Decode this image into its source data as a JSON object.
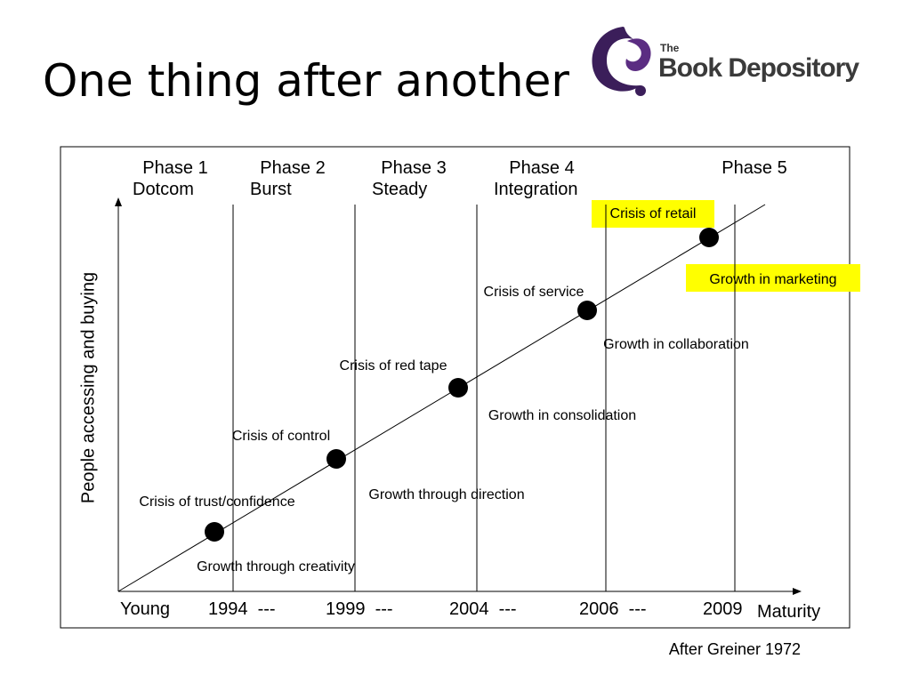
{
  "title": "One thing after another",
  "logo": {
    "small": "The",
    "name": "Book Depository"
  },
  "phases": [
    {
      "name": "Phase 1",
      "label": "Dotcom"
    },
    {
      "name": "Phase 2",
      "label": "Burst"
    },
    {
      "name": "Phase 3",
      "label": "Steady"
    },
    {
      "name": "Phase 4",
      "label": "Integration"
    },
    {
      "name": "Phase 5"
    }
  ],
  "crises": [
    "Crisis of trust/confidence",
    "Crisis of control",
    "Crisis of red tape",
    "Crisis of service",
    "Crisis of retail"
  ],
  "growths": [
    "Growth through creativity",
    "Growth through direction",
    "Growth in consolidation",
    "Growth in collaboration",
    "Growth in marketing"
  ],
  "x_labels": [
    "Young",
    "1994  ---",
    "1999  ---",
    "2004  ---",
    "2006  ---",
    "2009"
  ],
  "x_axis_label": "Maturity",
  "y_axis_label": "People accessing and buying",
  "source": "After Greiner 1972"
}
